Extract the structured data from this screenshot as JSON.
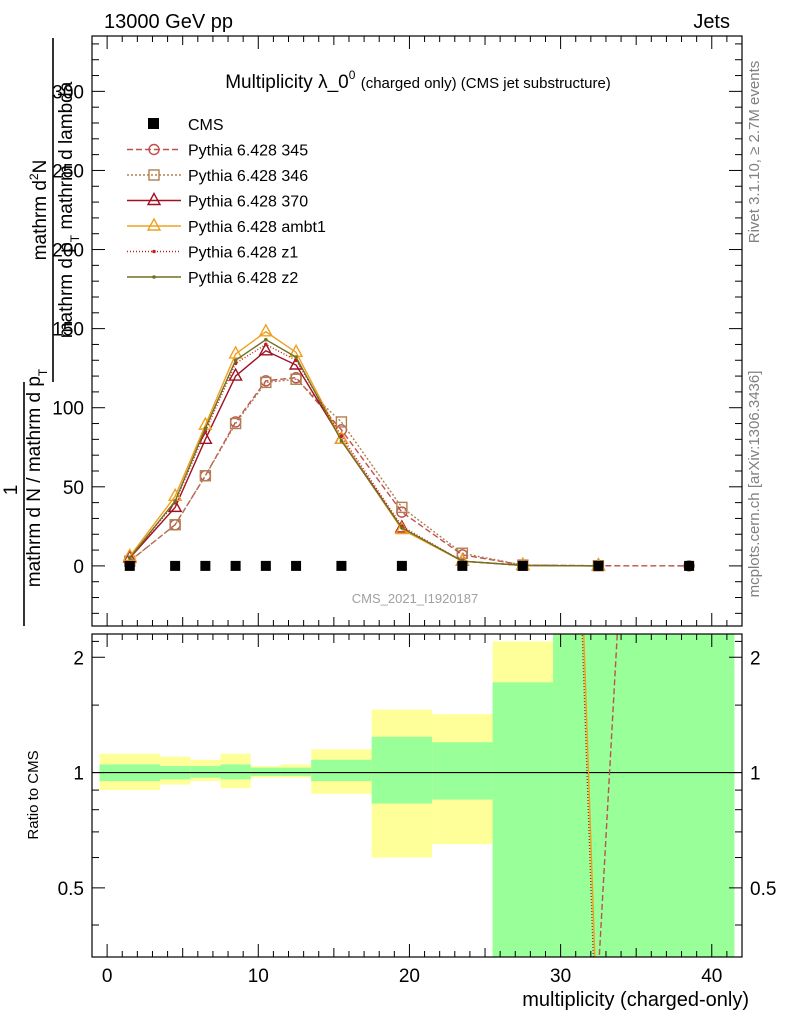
{
  "header": {
    "left": "13000 GeV pp",
    "right": "Jets"
  },
  "side_labels": {
    "rivet": "Rivet 3.1.10, ≥ 2.7M events",
    "mcplots": "mcplots.cern.ch [arXiv:1306.3436]"
  },
  "watermark": "CMS_2021_I1920187",
  "colors": {
    "band_yellow": "#ffff99",
    "band_green": "#99ff99"
  },
  "chart_data": [
    {
      "type": "line",
      "title_main": "Multiplicity λ_0",
      "title_sup": "0",
      "title_small": "(charged only) (CMS jet substructure)",
      "ylabel_numerator": "mathrm d",
      "ylabel_numerator_sup": "2",
      "ylabel_numerator_tail": "N",
      "ylabel_denominator": "mathrm d p",
      "ylabel_denominator_sub": "T",
      "ylabel_denominator_tail": " mathrm d lambda",
      "ylabel_prefix_num": "1",
      "ylabel_prefix_den": "mathrm d N / mathrm d p",
      "ylabel_prefix_den_sub": "T",
      "xlim": [
        -1,
        42
      ],
      "ylim": [
        -38,
        335
      ],
      "y_ticks": [
        0,
        50,
        100,
        150,
        200,
        250,
        300
      ],
      "y_tick_labels": [
        "0",
        "50",
        "100",
        "150",
        "200",
        "250",
        "300"
      ],
      "legend_position": "top-left",
      "series": [
        {
          "name": "CMS",
          "color": "#000000",
          "marker": "square",
          "dash": "none",
          "x": [
            1.5,
            4.5,
            6.5,
            8.5,
            10.5,
            12.5,
            15.5,
            19.5,
            23.5,
            27.5,
            32.5,
            38.5
          ],
          "y": [
            0,
            0,
            0,
            0,
            0,
            0,
            0,
            0,
            0,
            0,
            0,
            0
          ]
        },
        {
          "name": "Pythia 6.428 345",
          "color": "#c05050",
          "marker": "circle",
          "dash": "6,3",
          "x": [
            1.5,
            4.5,
            6.5,
            8.5,
            10.5,
            12.5,
            15.5,
            19.5,
            23.5,
            27.5,
            32.5,
            38.5
          ],
          "y": [
            3,
            26,
            57,
            91,
            117,
            119,
            86,
            34,
            7,
            0.5,
            0.1,
            0
          ]
        },
        {
          "name": "Pythia 6.428 346",
          "color": "#b08050",
          "marker": "square-open",
          "dash": "2,2",
          "x": [
            1.5,
            4.5,
            6.5,
            8.5,
            10.5,
            12.5,
            15.5,
            19.5,
            23.5,
            27.5,
            32.5
          ],
          "y": [
            3,
            26,
            57,
            90,
            116,
            118,
            91,
            37,
            8,
            0.5,
            0.1
          ]
        },
        {
          "name": "Pythia 6.428 370",
          "color": "#a01020",
          "marker": "triangle",
          "dash": "none",
          "x": [
            1.5,
            4.5,
            6.5,
            8.5,
            10.5,
            12.5,
            15.5,
            19.5,
            23.5,
            27.5,
            32.5
          ],
          "y": [
            5,
            37,
            80,
            120,
            136,
            127,
            80,
            24,
            3,
            0.3,
            0
          ]
        },
        {
          "name": "Pythia 6.428 ambt1",
          "color": "#f0a020",
          "marker": "triangle",
          "dash": "none",
          "x": [
            1.5,
            4.5,
            6.5,
            8.5,
            10.5,
            12.5,
            15.5,
            19.5,
            23.5,
            27.5,
            32.5
          ],
          "y": [
            6,
            44,
            89,
            134,
            148,
            135,
            80,
            23,
            3,
            0.3,
            0
          ]
        },
        {
          "name": "Pythia 6.428 z1",
          "color": "#c02020",
          "marker": "dot",
          "dash": "1,2",
          "x": [
            1.5,
            4.5,
            6.5,
            8.5,
            10.5,
            12.5,
            15.5,
            19.5,
            23.5,
            27.5,
            32.5
          ],
          "y": [
            5,
            40,
            85,
            128,
            140,
            130,
            82,
            25,
            3,
            0.3,
            0
          ]
        },
        {
          "name": "Pythia 6.428 z2",
          "color": "#707020",
          "marker": "dot",
          "dash": "none",
          "x": [
            1.5,
            4.5,
            6.5,
            8.5,
            10.5,
            12.5,
            15.5,
            19.5,
            23.5,
            27.5,
            32.5
          ],
          "y": [
            5,
            41,
            87,
            130,
            143,
            132,
            79,
            24,
            3,
            0.3,
            0
          ]
        }
      ]
    },
    {
      "type": "area",
      "ylabel": "Ratio to CMS",
      "xlabel": "multiplicity (charged-only)",
      "xlim": [
        -1,
        42
      ],
      "ylim": [
        0.33,
        2.3
      ],
      "scale_y": "log",
      "x_ticks": [
        0,
        10,
        20,
        30,
        40
      ],
      "x_tick_labels": [
        "0",
        "10",
        "20",
        "30",
        "40"
      ],
      "y_ticks": [
        0.5,
        1,
        2
      ],
      "y_tick_labels": [
        "0.5",
        "1",
        "2"
      ],
      "bins": [
        {
          "x0": -0.5,
          "x1": 3.5,
          "green": [
            0.95,
            1.05
          ],
          "yellow": [
            0.9,
            1.12
          ]
        },
        {
          "x0": 3.5,
          "x1": 5.5,
          "green": [
            0.96,
            1.04
          ],
          "yellow": [
            0.93,
            1.1
          ]
        },
        {
          "x0": 5.5,
          "x1": 7.5,
          "green": [
            0.97,
            1.04
          ],
          "yellow": [
            0.95,
            1.08
          ]
        },
        {
          "x0": 7.5,
          "x1": 9.5,
          "green": [
            0.96,
            1.05
          ],
          "yellow": [
            0.91,
            1.12
          ]
        },
        {
          "x0": 9.5,
          "x1": 11.5,
          "green": [
            0.98,
            1.03
          ],
          "yellow": [
            0.97,
            1.04
          ]
        },
        {
          "x0": 11.5,
          "x1": 13.5,
          "green": [
            0.98,
            1.03
          ],
          "yellow": [
            0.97,
            1.05
          ]
        },
        {
          "x0": 13.5,
          "x1": 17.5,
          "green": [
            0.95,
            1.08
          ],
          "yellow": [
            0.88,
            1.15
          ]
        },
        {
          "x0": 17.5,
          "x1": 21.5,
          "green": [
            0.83,
            1.24
          ],
          "yellow": [
            0.6,
            1.46
          ]
        },
        {
          "x0": 21.5,
          "x1": 25.5,
          "green": [
            0.85,
            1.2
          ],
          "yellow": [
            0.65,
            1.42
          ]
        },
        {
          "x0": 25.5,
          "x1": 29.5,
          "green": [
            0.3,
            1.72
          ],
          "yellow": [
            0.3,
            2.2
          ]
        },
        {
          "x0": 29.5,
          "x1": 41.5,
          "green": [
            0.3,
            2.4
          ],
          "yellow": [
            0.3,
            2.4
          ]
        }
      ],
      "ratio_lines": [
        {
          "name": "Pythia 6.428 345",
          "color": "#c05050",
          "dash": "6,3",
          "x": [
            32.5,
            33.8
          ],
          "y": [
            0.3,
            2.5
          ]
        },
        {
          "name": "Pythia 6.428 ambt1",
          "color": "#f0a020",
          "dash": "none",
          "x": [
            31.5,
            32.3
          ],
          "y": [
            2.5,
            0.3
          ]
        },
        {
          "name": "Pythia 6.428 z1",
          "color": "#c02020",
          "dash": "1,2",
          "x": [
            31.4,
            32.2
          ],
          "y": [
            2.5,
            0.3
          ]
        }
      ]
    }
  ]
}
